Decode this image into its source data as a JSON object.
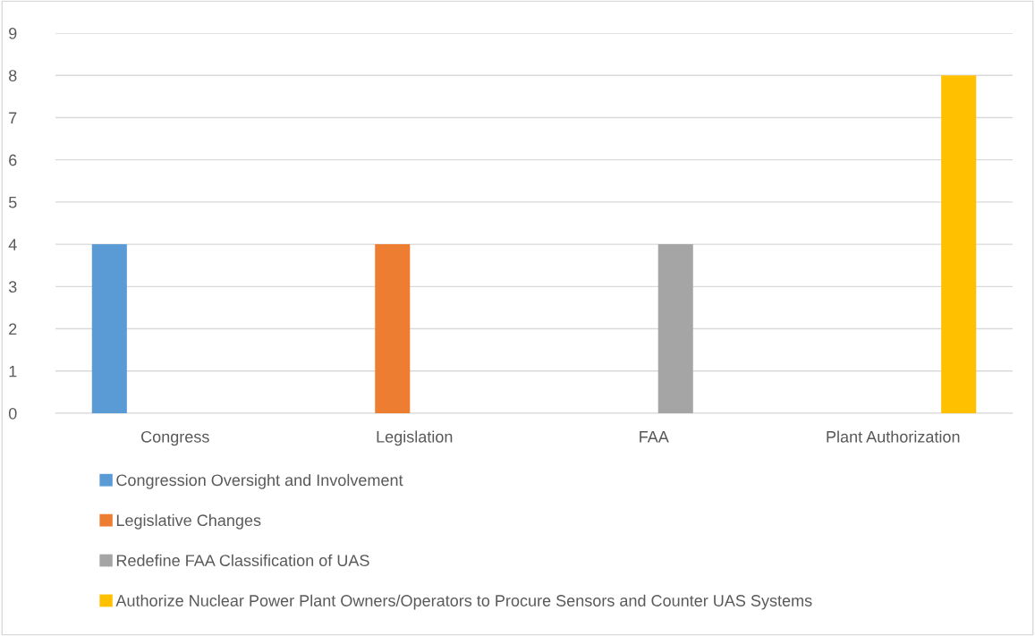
{
  "chart_data": {
    "type": "bar",
    "categories": [
      "Congress",
      "Legislation",
      "FAA",
      "Plant Authorization"
    ],
    "series": [
      {
        "name": "Congression Oversight and Involvement",
        "color": "#5b9bd5",
        "values": [
          4,
          null,
          null,
          null
        ]
      },
      {
        "name": "Legislative Changes",
        "color": "#ed7d31",
        "values": [
          null,
          4,
          null,
          null
        ]
      },
      {
        "name": "Redefine FAA Classification of UAS",
        "color": "#a5a5a5",
        "values": [
          null,
          null,
          4,
          null
        ]
      },
      {
        "name": "Authorize Nuclear Power Plant Owners/Operators to Procure Sensors and Counter UAS Systems",
        "color": "#ffc000",
        "values": [
          null,
          null,
          null,
          8
        ]
      }
    ],
    "ylim": [
      0,
      9
    ],
    "yticks": [
      0,
      1,
      2,
      3,
      4,
      5,
      6,
      7,
      8,
      9
    ],
    "grid": "y",
    "legend": "bottom"
  }
}
